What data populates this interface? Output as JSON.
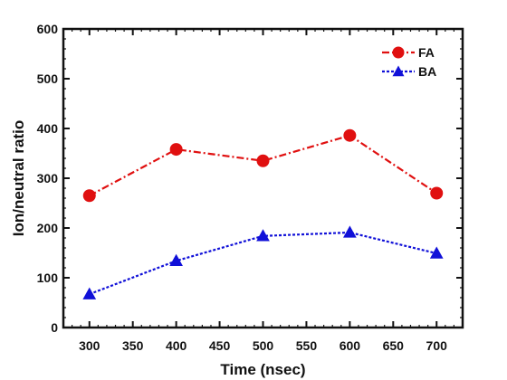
{
  "chart_data": {
    "type": "line",
    "title": "",
    "xlabel": "Time (nsec)",
    "ylabel": "Ion/neutral ratio",
    "xlim": [
      270,
      730
    ],
    "ylim": [
      0,
      600
    ],
    "xticks": [
      300,
      350,
      400,
      450,
      500,
      550,
      600,
      650,
      700
    ],
    "yticks": [
      0,
      100,
      200,
      300,
      400,
      500,
      600
    ],
    "grid": false,
    "legend_position": "top-right",
    "x": [
      300,
      400,
      500,
      600,
      700
    ],
    "series": [
      {
        "name": "FA",
        "values": [
          265,
          358,
          335,
          386,
          270
        ],
        "color": "#e01010",
        "marker": "circle",
        "line_style": "dash-dot"
      },
      {
        "name": "BA",
        "values": [
          67,
          134,
          184,
          191,
          149
        ],
        "color": "#1010d8",
        "marker": "triangle",
        "line_style": "dotted"
      }
    ]
  }
}
